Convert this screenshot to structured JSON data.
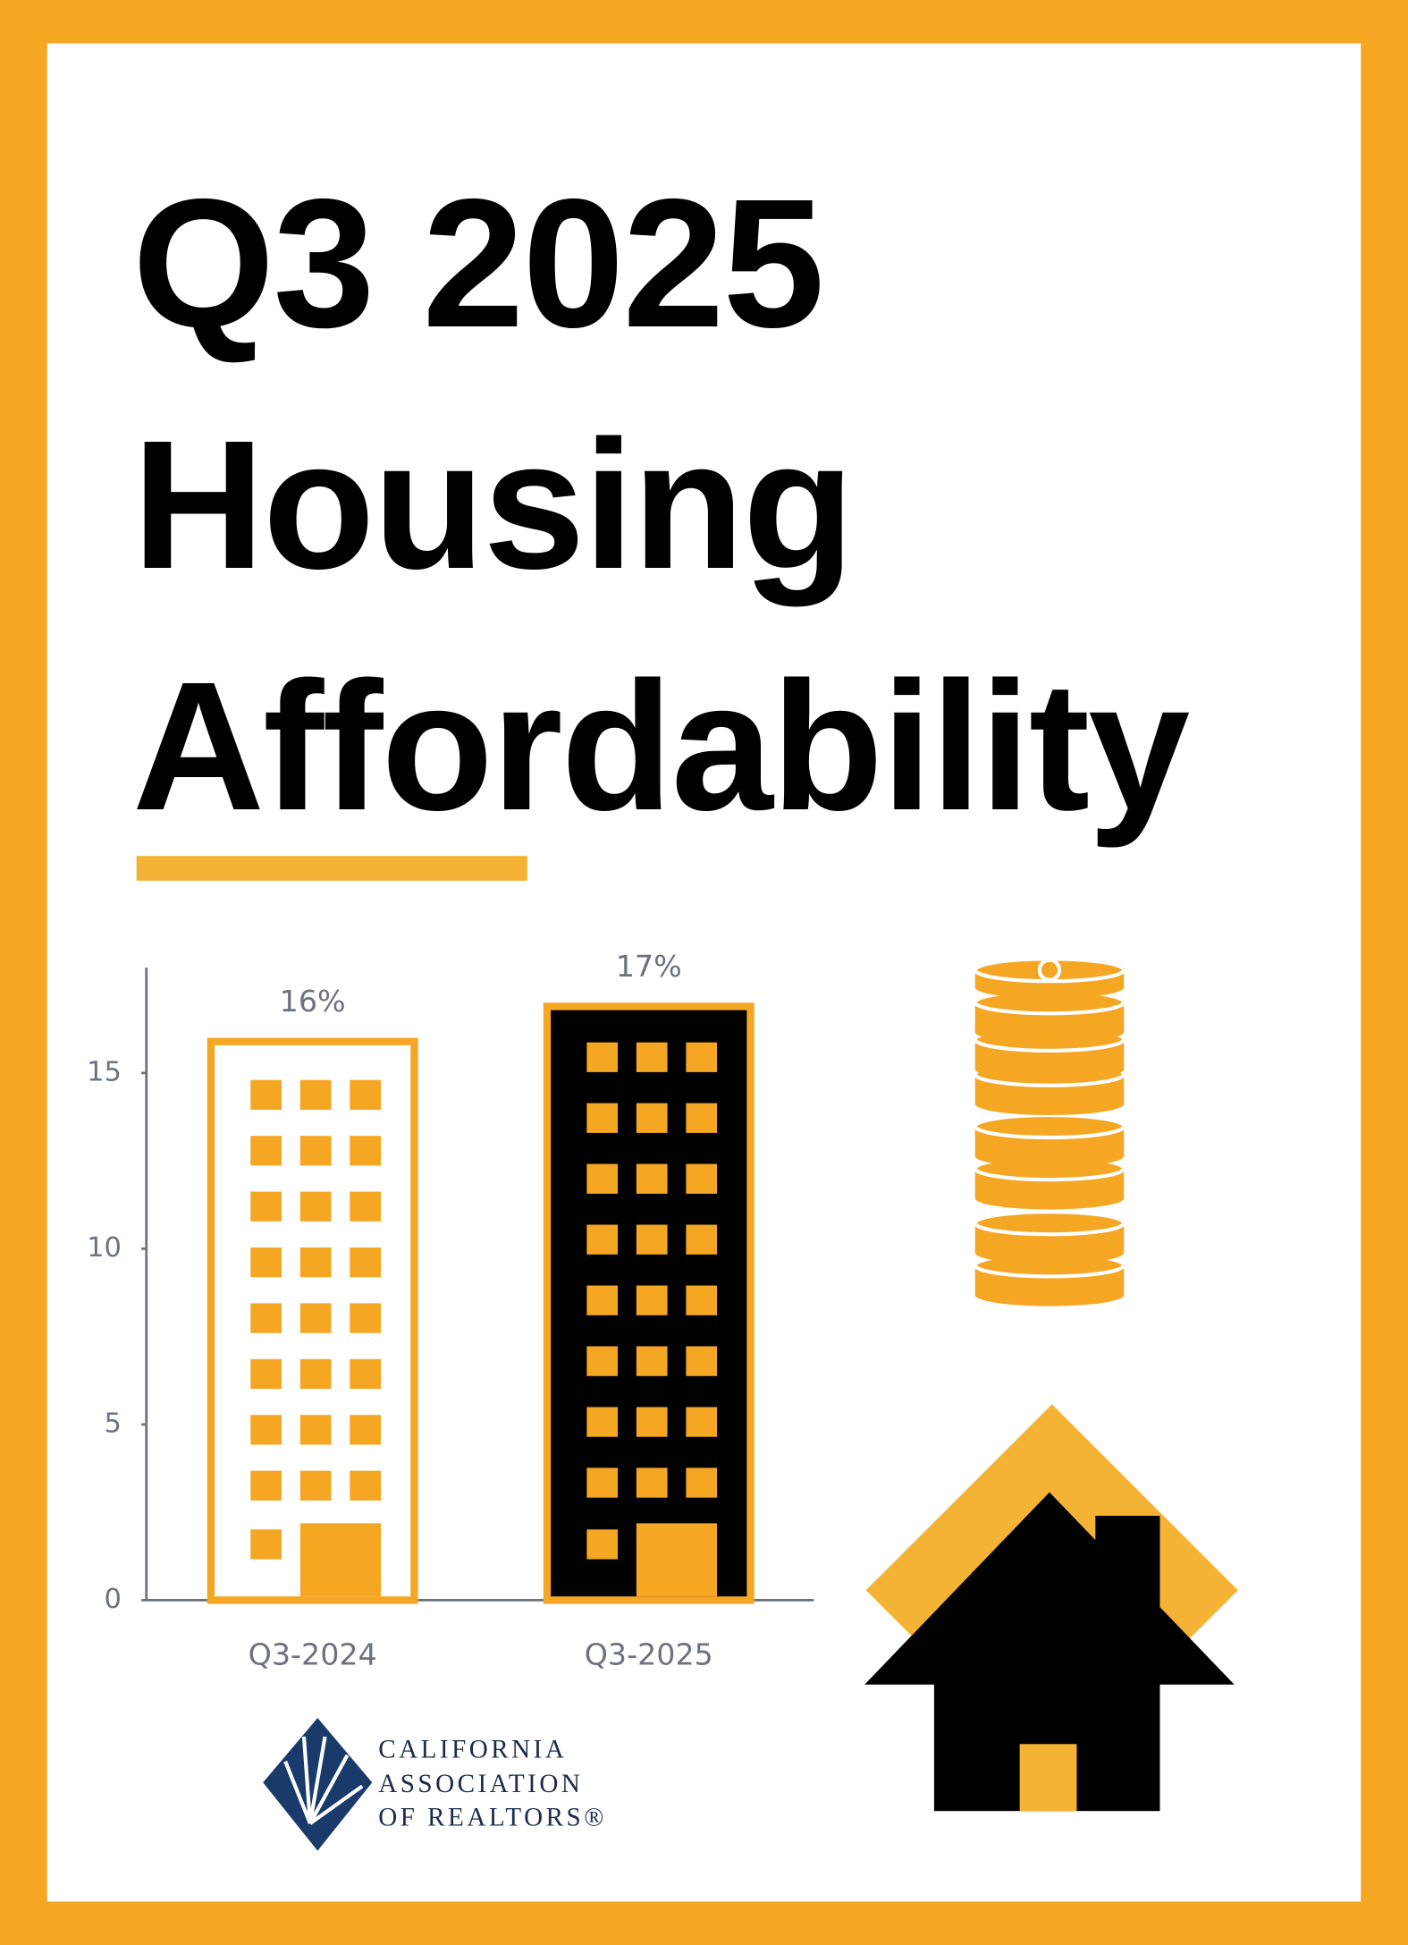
{
  "chart_data": {
    "type": "bar",
    "title": "Q3 2025 Housing Affordability",
    "categories": [
      "Q3-2024",
      "Q3-2025"
    ],
    "values": [
      16,
      17
    ],
    "value_labels": [
      "16%",
      "17%"
    ],
    "color": "#f5a623",
    "ylim": [
      0,
      18
    ],
    "yticks": [
      0,
      5,
      10,
      15
    ]
  },
  "logo": {
    "lines": [
      "CALIFORNIA",
      "ASSOCIATION",
      "OF REALTORS®"
    ]
  }
}
